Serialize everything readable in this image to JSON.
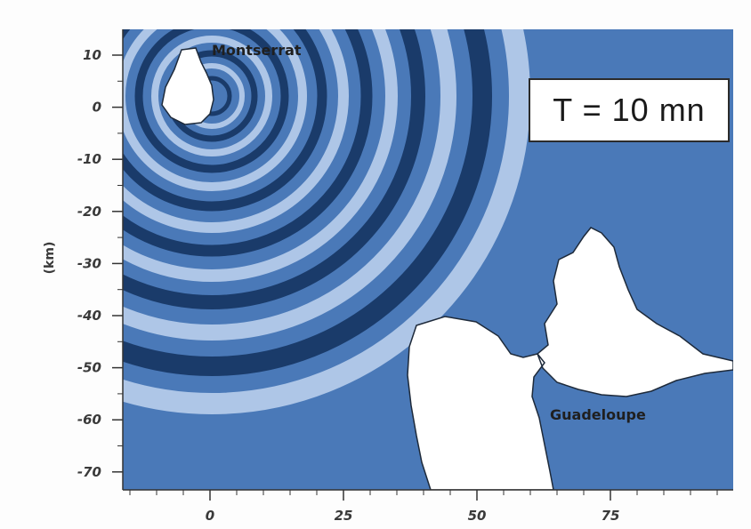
{
  "colors": {
    "sea": "#4a79b8",
    "wave_dark": "#12305c",
    "wave_light": "#bfd3ee",
    "land": "#ffffff"
  },
  "y_axis": {
    "label": "(km)",
    "ticks": [
      "10",
      "0",
      "-10",
      "-20",
      "-30",
      "-40",
      "-50",
      "-60",
      "-70"
    ]
  },
  "x_axis": {
    "ticks": [
      "0",
      "25",
      "50",
      "75"
    ]
  },
  "labels": {
    "montserrat": "Montserrat",
    "guadeloupe": "Guadeloupe"
  },
  "time_stamp": "T = 10 mn"
}
